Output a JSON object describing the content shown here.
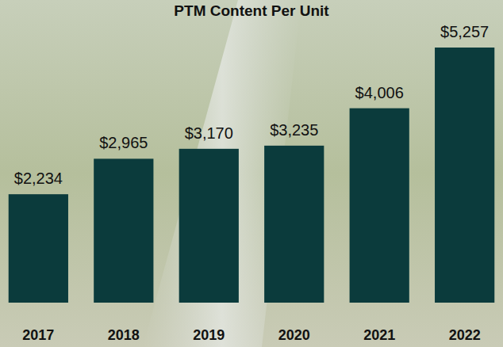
{
  "chart_data": {
    "type": "bar",
    "title": "PTM Content Per Unit",
    "categories": [
      "2017",
      "2018",
      "2019",
      "2020",
      "2021",
      "2022"
    ],
    "values": [
      2234,
      2965,
      3170,
      3235,
      4006,
      5257
    ],
    "value_labels": [
      "$2,234",
      "$2,965",
      "$3,170",
      "$3,235",
      "$4,006",
      "$5,257"
    ],
    "color": "#0b3b3c",
    "data_labels": true,
    "tick_labels": "x",
    "grid": false
  }
}
